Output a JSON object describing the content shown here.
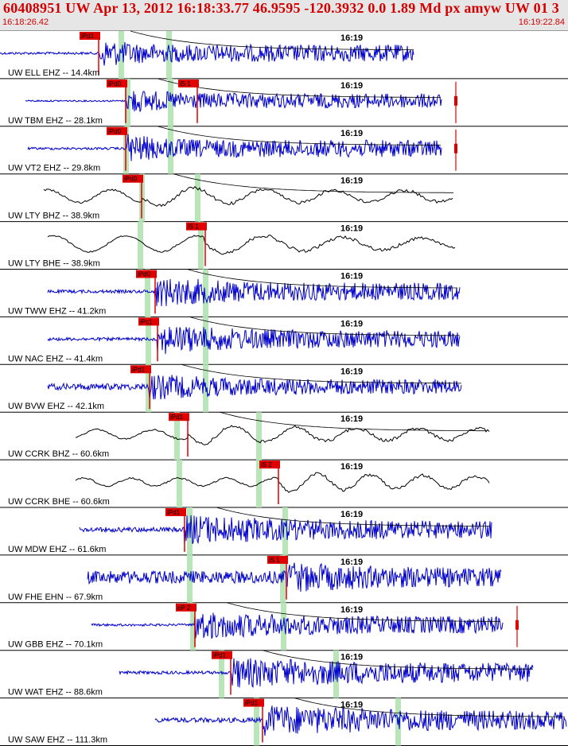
{
  "header": {
    "title": "60408951 UW Apr 13, 2012 16:18:33.77    46.9595 -120.3932  0.0 1.89 Md px amyw UW 01   3",
    "start_time": "16:18:26.42",
    "end_time": "16:19:22.84"
  },
  "colors": {
    "header_text": "#d40000",
    "header_bg": "#e6e6e6",
    "trace_blue": "#0000cc",
    "trace_black": "#000000",
    "pick_red": "#e00000",
    "window_green": "#b8e6b8",
    "coda_red": "#cc0000"
  },
  "minute_tick_label": "16:19",
  "traces": [
    {
      "label": "UW ELL EHZ -- 14.4km",
      "color": "blue",
      "picks": [
        "iPd1"
      ],
      "amp": 14,
      "noise": 1.5,
      "period": 3,
      "start": 0,
      "end": 520,
      "onset": 125,
      "decay": 0.01,
      "coda": true,
      "end_marker": false
    },
    {
      "label": "UW TBM EHZ -- 28.1km",
      "color": "blue",
      "picks": [
        "iPd0",
        "iS 1"
      ],
      "amp": 12,
      "noise": 1.0,
      "period": 3,
      "start": 32,
      "end": 555,
      "onset": 160,
      "decay": 0.008,
      "coda": true,
      "end_marker": true
    },
    {
      "label": "UW VT2 EHZ -- 29.8km",
      "color": "blue",
      "picks": [
        "iPd0"
      ],
      "amp": 14,
      "noise": 1.5,
      "period": 3,
      "start": 35,
      "end": 555,
      "onset": 160,
      "decay": 0.01,
      "coda": true,
      "end_marker": true
    },
    {
      "label": "UW LTY BHZ -- 38.9km",
      "color": "black",
      "picks": [
        "iPd0"
      ],
      "amp": 10,
      "noise": 8,
      "period": 40,
      "start": 55,
      "end": 570,
      "onset": 178,
      "decay": 0.003,
      "coda": true,
      "end_marker": false
    },
    {
      "label": "UW LTY BHE -- 38.9km",
      "color": "black",
      "picks": [
        "iS 1"
      ],
      "amp": 10,
      "noise": 10,
      "period": 45,
      "start": 60,
      "end": 572,
      "onset": 258,
      "decay": 0.003,
      "coda": false,
      "end_marker": false
    },
    {
      "label": "UW TWW EHZ -- 41.2km",
      "color": "blue",
      "picks": [
        "iPd0"
      ],
      "amp": 14,
      "noise": 2,
      "period": 4,
      "start": 60,
      "end": 578,
      "onset": 195,
      "decay": 0.004,
      "coda": true,
      "end_marker": false
    },
    {
      "label": "UW NAC EHZ -- 41.4km",
      "color": "blue",
      "picks": [
        "iPc1"
      ],
      "amp": 14,
      "noise": 2,
      "period": 4,
      "start": 60,
      "end": 578,
      "onset": 198,
      "decay": 0.004,
      "coda": true,
      "end_marker": false
    },
    {
      "label": "UW BVW EHZ -- 42.1km",
      "color": "blue",
      "picks": [
        "iPd1"
      ],
      "amp": 12,
      "noise": 4,
      "period": 2,
      "start": 60,
      "end": 580,
      "onset": 188,
      "decay": 0.004,
      "coda": true,
      "end_marker": false
    },
    {
      "label": "UW CCRK BHZ -- 60.6km",
      "color": "black",
      "picks": [
        "iPd1"
      ],
      "amp": 10,
      "noise": 6,
      "period": 35,
      "start": 95,
      "end": 615,
      "onset": 236,
      "decay": 0.003,
      "coda": true,
      "end_marker": false
    },
    {
      "label": "UW CCRK BHE -- 60.6km",
      "color": "black",
      "picks": [
        "iS 2"
      ],
      "amp": 10,
      "noise": 5,
      "period": 30,
      "start": 95,
      "end": 615,
      "onset": 350,
      "decay": 0.003,
      "coda": false,
      "end_marker": false
    },
    {
      "label": "UW MDW EHZ -- 61.6km",
      "color": "blue",
      "picks": [
        "iPd1"
      ],
      "amp": 14,
      "noise": 3,
      "period": 3,
      "start": 100,
      "end": 618,
      "onset": 232,
      "decay": 0.003,
      "coda": true,
      "end_marker": false
    },
    {
      "label": "UW FHE EHN -- 67.9km",
      "color": "blue",
      "picks": [
        "iS 1"
      ],
      "amp": 14,
      "noise": 8,
      "period": 2,
      "start": 110,
      "end": 630,
      "onset": 360,
      "decay": 0.003,
      "coda": false,
      "end_marker": false
    },
    {
      "label": "UW GBB EHZ -- 70.1km",
      "color": "blue",
      "picks": [
        "eP 2"
      ],
      "amp": 14,
      "noise": 1.5,
      "period": 4,
      "start": 115,
      "end": 632,
      "onset": 245,
      "decay": 0.004,
      "coda": true,
      "end_marker": true
    },
    {
      "label": "UW WAT EHZ -- 88.6km",
      "color": "blue",
      "picks": [
        "iPd1"
      ],
      "amp": 14,
      "noise": 2,
      "period": 3,
      "start": 150,
      "end": 670,
      "onset": 290,
      "decay": 0.002,
      "coda": true,
      "end_marker": false
    },
    {
      "label": "UW SAW EHZ -- 111.3km",
      "color": "blue",
      "picks": [
        "iPd1"
      ],
      "amp": 14,
      "noise": 3,
      "period": 2,
      "start": 195,
      "end": 712,
      "onset": 330,
      "decay": 0.002,
      "coda": true,
      "end_marker": false
    }
  ]
}
